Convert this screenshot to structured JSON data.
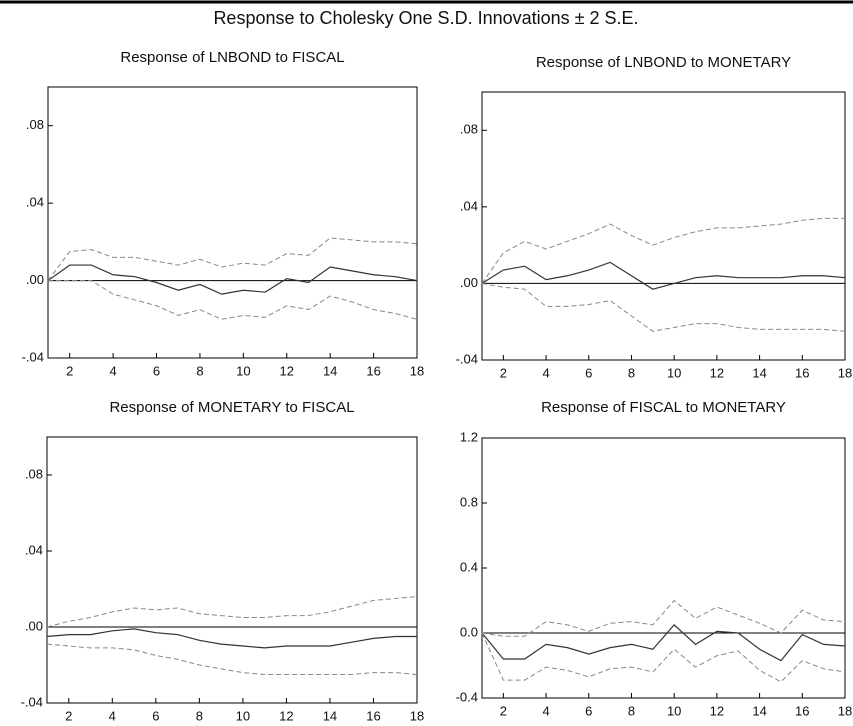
{
  "title": "Response to Cholesky One S.D. Innovations ± 2 S.E.",
  "chart_data": [
    {
      "type": "line",
      "title": "Response of LNBOND to FISCAL",
      "x": [
        1,
        2,
        3,
        4,
        5,
        6,
        7,
        8,
        9,
        10,
        11,
        12,
        13,
        14,
        15,
        16,
        17,
        18
      ],
      "xlim": [
        1,
        18
      ],
      "xticks": [
        2,
        4,
        6,
        8,
        10,
        12,
        14,
        16,
        18
      ],
      "ylim": [
        -0.04,
        0.1
      ],
      "yticks": [
        {
          "value": -0.04,
          "label": "-.04"
        },
        {
          "value": 0,
          "label": ".00"
        },
        {
          "value": 0.04,
          "label": ".04"
        },
        {
          "value": 0.08,
          "label": ".08"
        }
      ],
      "hlines": [
        0
      ],
      "series": [
        {
          "color": "#333333",
          "dashed": false,
          "values": [
            0,
            0.008,
            0.008,
            0.003,
            0.002,
            -0.001,
            -0.005,
            -0.002,
            -0.007,
            -0.005,
            -0.006,
            0.001,
            -0.001,
            0.007,
            0.005,
            0.003,
            0.002,
            0
          ]
        },
        {
          "color": "#888888",
          "dashed": true,
          "values": [
            0,
            0.015,
            0.016,
            0.012,
            0.012,
            0.01,
            0.008,
            0.011,
            0.007,
            0.009,
            0.008,
            0.014,
            0.013,
            0.022,
            0.021,
            0.02,
            0.02,
            0.019
          ]
        },
        {
          "color": "#888888",
          "dashed": true,
          "values": [
            0,
            0,
            0,
            -0.007,
            -0.01,
            -0.013,
            -0.018,
            -0.015,
            -0.02,
            -0.018,
            -0.019,
            -0.013,
            -0.015,
            -0.008,
            -0.011,
            -0.015,
            -0.017,
            -0.02
          ]
        }
      ]
    },
    {
      "type": "line",
      "title": "Response of LNBOND to MONETARY",
      "x": [
        1,
        2,
        3,
        4,
        5,
        6,
        7,
        8,
        9,
        10,
        11,
        12,
        13,
        14,
        15,
        16,
        17,
        18
      ],
      "xlim": [
        1,
        18
      ],
      "xticks": [
        2,
        4,
        6,
        8,
        10,
        12,
        14,
        16,
        18
      ],
      "ylim": [
        -0.04,
        0.1
      ],
      "yticks": [
        {
          "value": -0.04,
          "label": "-.04"
        },
        {
          "value": 0,
          "label": ".00"
        },
        {
          "value": 0.04,
          "label": ".04"
        },
        {
          "value": 0.08,
          "label": ".08"
        }
      ],
      "hlines": [
        0
      ],
      "series": [
        {
          "color": "#333333",
          "dashed": false,
          "values": [
            0,
            0.007,
            0.009,
            0.002,
            0.004,
            0.007,
            0.011,
            0.004,
            -0.003,
            0,
            0.003,
            0.004,
            0.003,
            0.003,
            0.003,
            0.004,
            0.004,
            0.003
          ]
        },
        {
          "color": "#888888",
          "dashed": true,
          "values": [
            0,
            0.016,
            0.022,
            0.018,
            0.022,
            0.026,
            0.031,
            0.025,
            0.02,
            0.024,
            0.027,
            0.029,
            0.029,
            0.03,
            0.031,
            0.033,
            0.034,
            0.034
          ]
        },
        {
          "color": "#888888",
          "dashed": true,
          "values": [
            0,
            -0.002,
            -0.003,
            -0.012,
            -0.012,
            -0.011,
            -0.009,
            -0.017,
            -0.025,
            -0.023,
            -0.021,
            -0.021,
            -0.023,
            -0.024,
            -0.024,
            -0.024,
            -0.024,
            -0.025
          ]
        }
      ]
    },
    {
      "type": "line",
      "title": "Response of MONETARY to FISCAL",
      "x": [
        1,
        2,
        3,
        4,
        5,
        6,
        7,
        8,
        9,
        10,
        11,
        12,
        13,
        14,
        15,
        16,
        17,
        18
      ],
      "xlim": [
        1,
        18
      ],
      "xticks": [
        2,
        4,
        6,
        8,
        10,
        12,
        14,
        16,
        18
      ],
      "ylim": [
        -0.04,
        0.1
      ],
      "yticks": [
        {
          "value": -0.04,
          "label": "-.04"
        },
        {
          "value": 0,
          "label": ".00"
        },
        {
          "value": 0.04,
          "label": ".04"
        },
        {
          "value": 0.08,
          "label": ".08"
        }
      ],
      "hlines": [
        0
      ],
      "series": [
        {
          "color": "#333333",
          "dashed": false,
          "values": [
            -0.005,
            -0.004,
            -0.004,
            -0.002,
            -0.001,
            -0.003,
            -0.004,
            -0.007,
            -0.009,
            -0.01,
            -0.011,
            -0.01,
            -0.01,
            -0.01,
            -0.008,
            -0.006,
            -0.005,
            -0.005
          ]
        },
        {
          "color": "#888888",
          "dashed": true,
          "values": [
            0,
            0.003,
            0.005,
            0.008,
            0.01,
            0.009,
            0.01,
            0.007,
            0.006,
            0.005,
            0.005,
            0.006,
            0.006,
            0.008,
            0.011,
            0.014,
            0.015,
            0.016
          ]
        },
        {
          "color": "#888888",
          "dashed": true,
          "values": [
            -0.009,
            -0.01,
            -0.011,
            -0.011,
            -0.012,
            -0.015,
            -0.017,
            -0.02,
            -0.022,
            -0.024,
            -0.025,
            -0.025,
            -0.025,
            -0.025,
            -0.025,
            -0.024,
            -0.024,
            -0.025
          ]
        }
      ]
    },
    {
      "type": "line",
      "title": "Response of FISCAL to MONETARY",
      "x": [
        1,
        2,
        3,
        4,
        5,
        6,
        7,
        8,
        9,
        10,
        11,
        12,
        13,
        14,
        15,
        16,
        17,
        18
      ],
      "xlim": [
        1,
        18
      ],
      "xticks": [
        2,
        4,
        6,
        8,
        10,
        12,
        14,
        16,
        18
      ],
      "ylim": [
        -0.4,
        1.2
      ],
      "yticks": [
        -0.4,
        {
          "value": 0,
          "label": "0.0"
        },
        0.4,
        0.8,
        1.2
      ],
      "hlines": [
        0
      ],
      "series": [
        {
          "color": "#333333",
          "dashed": false,
          "values": [
            0,
            -0.16,
            -0.16,
            -0.07,
            -0.09,
            -0.13,
            -0.09,
            -0.07,
            -0.1,
            0.05,
            -0.07,
            0.01,
            0,
            -0.1,
            -0.17,
            -0.01,
            -0.07,
            -0.08
          ]
        },
        {
          "color": "#888888",
          "dashed": true,
          "values": [
            0,
            -0.02,
            -0.02,
            0.07,
            0.05,
            0.01,
            0.06,
            0.07,
            0.05,
            0.2,
            0.09,
            0.16,
            0.11,
            0.06,
            0,
            0.14,
            0.08,
            0.07
          ]
        },
        {
          "color": "#888888",
          "dashed": true,
          "values": [
            0,
            -0.29,
            -0.29,
            -0.21,
            -0.23,
            -0.27,
            -0.22,
            -0.21,
            -0.24,
            -0.1,
            -0.21,
            -0.14,
            -0.11,
            -0.23,
            -0.3,
            -0.17,
            -0.22,
            -0.24
          ]
        }
      ]
    }
  ]
}
